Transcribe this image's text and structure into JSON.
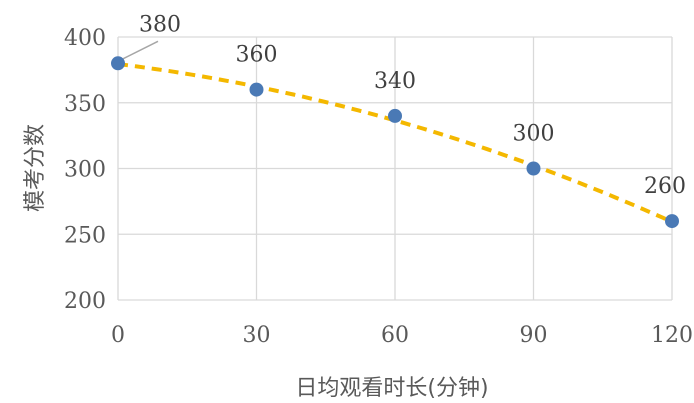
{
  "chart_data": {
    "type": "scatter",
    "title": "",
    "xlabel": "日均观看时长(分钟)",
    "ylabel": "模考分数",
    "x": [
      0,
      30,
      60,
      90,
      120
    ],
    "y": [
      380,
      360,
      340,
      300,
      260
    ],
    "data_labels": [
      "380",
      "360",
      "340",
      "300",
      "260"
    ],
    "xlim": [
      0,
      120
    ],
    "ylim": [
      200,
      400
    ],
    "x_ticks": [
      0,
      30,
      60,
      90,
      120
    ],
    "y_ticks": [
      200,
      250,
      300,
      350,
      400
    ],
    "x_tick_labels": [
      "0",
      "30",
      "60",
      "90",
      "120"
    ],
    "y_tick_labels": [
      "200",
      "250",
      "300",
      "350",
      "400"
    ],
    "grid": true,
    "legend": "none",
    "trendline": {
      "type": "polynomial",
      "order": 2,
      "style": "dashed",
      "color": "#f4b800"
    },
    "marker_color": "#4a79b5",
    "gridline_color": "#d9d9d9"
  }
}
